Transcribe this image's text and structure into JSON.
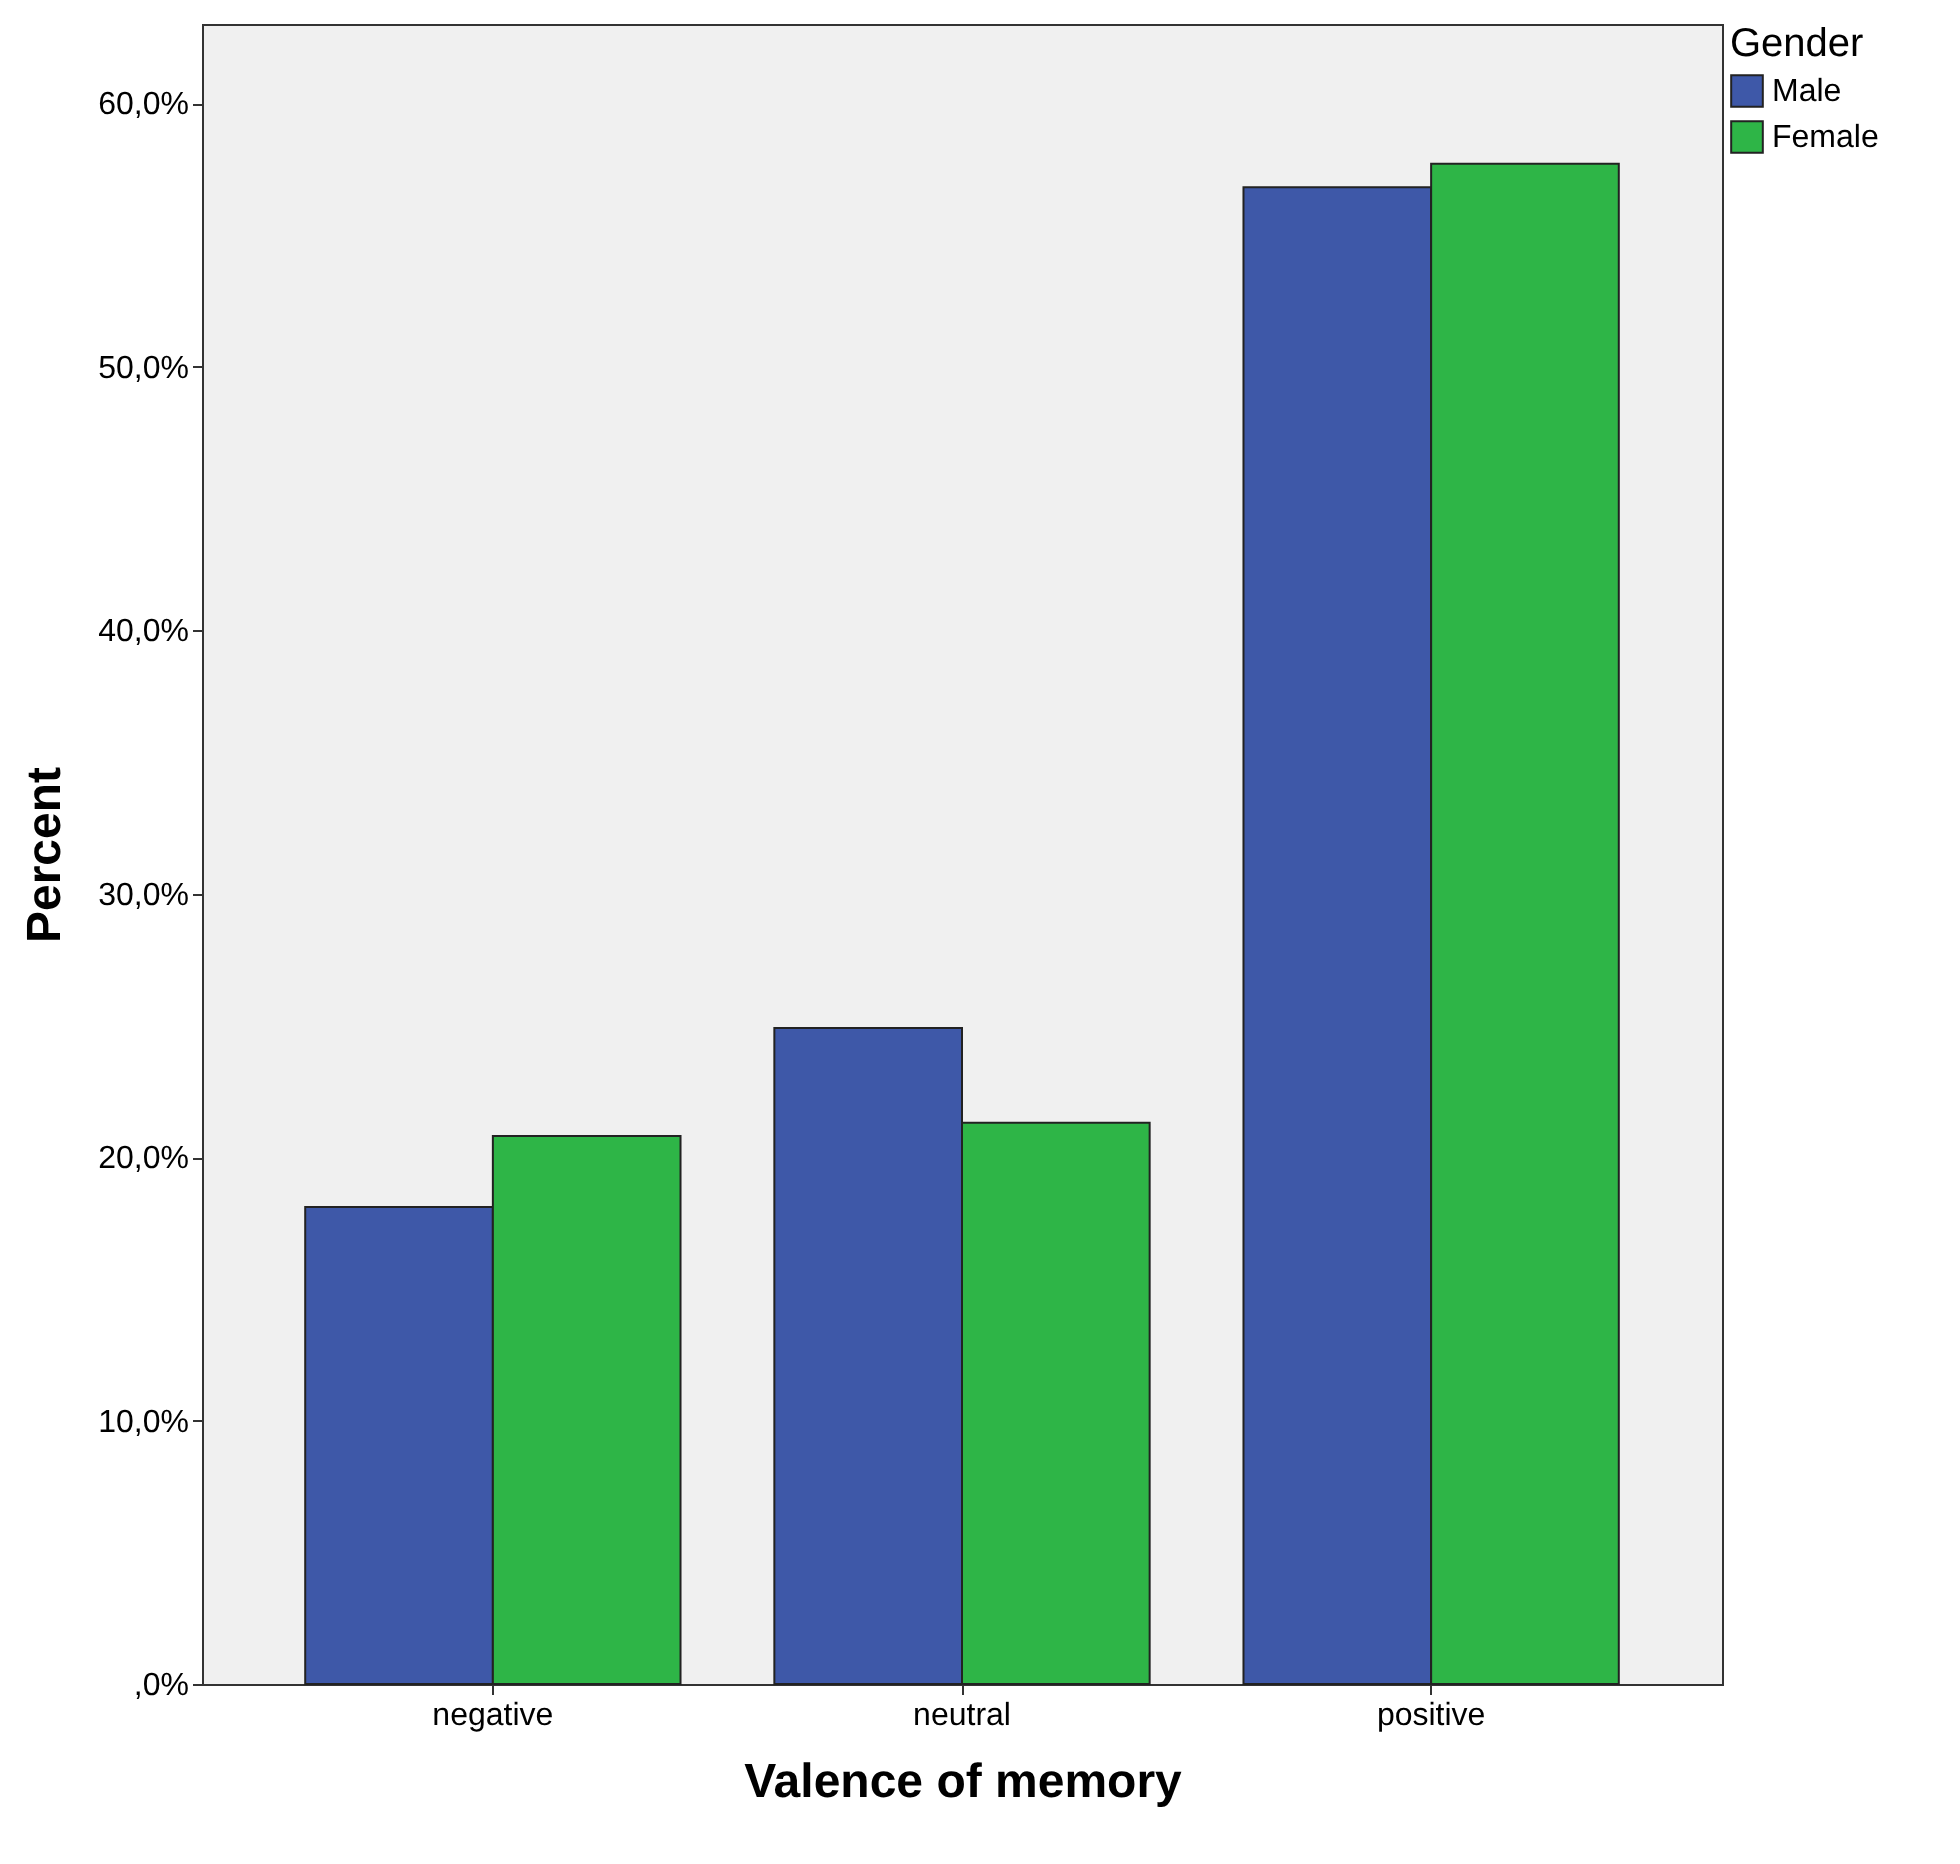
{
  "chart_data": {
    "type": "bar",
    "xlabel": "Valence of memory",
    "ylabel": "Percent",
    "legend_title": "Gender",
    "categories": [
      "negative",
      "neutral",
      "positive"
    ],
    "series": [
      {
        "name": "Male",
        "color": "#3e58a8",
        "values": [
          18.1,
          24.9,
          56.8
        ]
      },
      {
        "name": "Female",
        "color": "#2eb547",
        "values": [
          20.8,
          21.3,
          57.7
        ]
      }
    ],
    "ylim": [
      0,
      63
    ],
    "yticks": [
      {
        "value": 0,
        "label": ",0%"
      },
      {
        "value": 10,
        "label": "10,0%"
      },
      {
        "value": 20,
        "label": "20,0%"
      },
      {
        "value": 30,
        "label": "30,0%"
      },
      {
        "value": 40,
        "label": "40,0%"
      },
      {
        "value": 50,
        "label": "50,0%"
      },
      {
        "value": 60,
        "label": "60,0%"
      }
    ],
    "grid": false,
    "legend": "top right"
  }
}
